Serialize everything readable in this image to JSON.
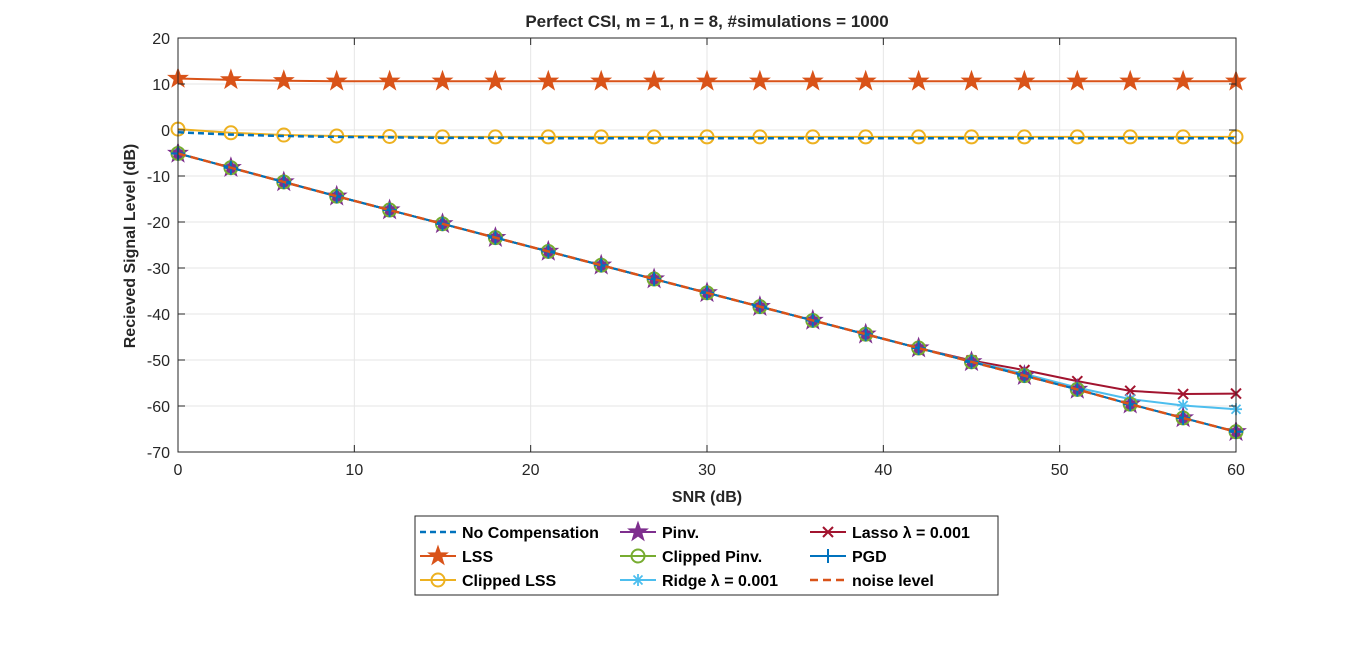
{
  "chart_data": {
    "type": "line",
    "title": "Perfect CSI, m = 1, n = 8, #simulations = 1000",
    "xlabel": "SNR (dB)",
    "ylabel": "Recieved Signal Level (dB)",
    "xlim": [
      0,
      60
    ],
    "ylim": [
      -70,
      20
    ],
    "xticks": [
      0,
      10,
      20,
      30,
      40,
      50,
      60
    ],
    "yticks": [
      20,
      10,
      0,
      -10,
      -20,
      -30,
      -40,
      -50,
      -60,
      -70
    ],
    "grid": true,
    "legend_position": "bottom-outside",
    "x": [
      0,
      3,
      6,
      9,
      12,
      15,
      18,
      21,
      24,
      27,
      30,
      33,
      36,
      39,
      42,
      45,
      48,
      51,
      54,
      57,
      60
    ],
    "series": [
      {
        "name": "No Compensation",
        "color": "#0072BD",
        "dash": "6,4",
        "marker": "none",
        "values": [
          -0.5,
          -1.0,
          -1.3,
          -1.5,
          -1.6,
          -1.7,
          -1.7,
          -1.8,
          -1.8,
          -1.8,
          -1.8,
          -1.8,
          -1.8,
          -1.8,
          -1.8,
          -1.8,
          -1.8,
          -1.8,
          -1.8,
          -1.8,
          -1.8
        ]
      },
      {
        "name": "LSS",
        "color": "#D95319",
        "dash": "",
        "marker": "star",
        "values": [
          11.2,
          10.9,
          10.7,
          10.6,
          10.6,
          10.6,
          10.6,
          10.6,
          10.6,
          10.6,
          10.6,
          10.6,
          10.6,
          10.6,
          10.6,
          10.6,
          10.6,
          10.6,
          10.6,
          10.6,
          10.6
        ]
      },
      {
        "name": "Clipped LSS",
        "color": "#EDB120",
        "dash": "",
        "marker": "circle",
        "values": [
          0.2,
          -0.6,
          -1.1,
          -1.3,
          -1.4,
          -1.5,
          -1.5,
          -1.5,
          -1.5,
          -1.5,
          -1.5,
          -1.5,
          -1.5,
          -1.5,
          -1.5,
          -1.5,
          -1.5,
          -1.5,
          -1.5,
          -1.5,
          -1.5
        ]
      },
      {
        "name": "Pinv.",
        "color": "#7E2F8E",
        "dash": "",
        "marker": "star",
        "values": [
          -5.1,
          -8.2,
          -11.3,
          -14.4,
          -17.4,
          -20.4,
          -23.4,
          -26.4,
          -29.4,
          -32.4,
          -35.4,
          -38.4,
          -41.4,
          -44.4,
          -47.4,
          -50.4,
          -53.4,
          -56.4,
          -59.6,
          -62.6,
          -65.6
        ]
      },
      {
        "name": "Clipped Pinv.",
        "color": "#77AC30",
        "dash": "",
        "marker": "circle",
        "values": [
          -5.1,
          -8.2,
          -11.3,
          -14.4,
          -17.4,
          -20.4,
          -23.4,
          -26.4,
          -29.4,
          -32.4,
          -35.4,
          -38.4,
          -41.4,
          -44.4,
          -47.4,
          -50.4,
          -53.4,
          -56.4,
          -59.6,
          -62.6,
          -65.6
        ]
      },
      {
        "name": "Ridge λ = 0.001",
        "color": "#4DBEEE",
        "dash": "",
        "marker": "asterisk",
        "values": [
          -5.1,
          -8.2,
          -11.3,
          -14.4,
          -17.4,
          -20.4,
          -23.4,
          -26.4,
          -29.4,
          -32.4,
          -35.4,
          -38.4,
          -41.4,
          -44.4,
          -47.4,
          -50.3,
          -53.0,
          -56.0,
          -58.5,
          -59.9,
          -60.7
        ]
      },
      {
        "name": "Lasso λ = 0.001",
        "color": "#A2142F",
        "dash": "",
        "marker": "x",
        "values": [
          -5.1,
          -8.2,
          -11.3,
          -14.4,
          -17.4,
          -20.4,
          -23.4,
          -26.4,
          -29.4,
          -32.4,
          -35.4,
          -38.4,
          -41.4,
          -44.4,
          -47.4,
          -50.1,
          -52.2,
          -54.6,
          -56.7,
          -57.4,
          -57.3
        ]
      },
      {
        "name": "PGD",
        "color": "#0072BD",
        "dash": "",
        "marker": "plus",
        "values": [
          -5.1,
          -8.2,
          -11.3,
          -14.4,
          -17.4,
          -20.4,
          -23.4,
          -26.4,
          -29.4,
          -32.4,
          -35.4,
          -38.4,
          -41.4,
          -44.4,
          -47.4,
          -50.4,
          -53.4,
          -56.4,
          -59.6,
          -62.6,
          -65.6
        ]
      },
      {
        "name": "noise level",
        "color": "#D95319",
        "dash": "8,5",
        "marker": "none",
        "values": [
          -5.1,
          -8.2,
          -11.3,
          -14.4,
          -17.4,
          -20.4,
          -23.4,
          -26.4,
          -29.4,
          -32.4,
          -35.4,
          -38.4,
          -41.4,
          -44.4,
          -47.4,
          -50.4,
          -53.4,
          -56.4,
          -59.6,
          -62.6,
          -65.6
        ]
      }
    ],
    "legend": {
      "columns": [
        [
          "No Compensation",
          "LSS",
          "Clipped LSS"
        ],
        [
          "Pinv.",
          "Clipped Pinv.",
          "Ridge λ = 0.001"
        ],
        [
          "Lasso λ = 0.001",
          "PGD",
          "noise level"
        ]
      ]
    }
  }
}
